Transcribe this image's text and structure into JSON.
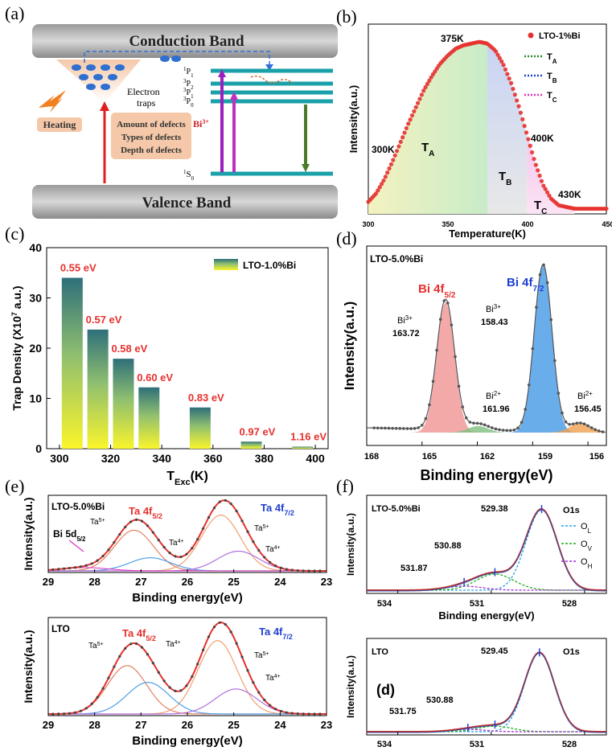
{
  "panels": {
    "a": {
      "label": "(a)",
      "conduction_band": "Conduction Band",
      "valence_band": "Valence Band",
      "electron_traps": [
        "Electron",
        "traps"
      ],
      "heating": "Heating",
      "defects": [
        "Amount of defects",
        "Types of defects",
        "Depth of defects"
      ],
      "bi_label": "Bi",
      "bi_sup": "3+",
      "levels": [
        {
          "sup": "1",
          "main": "P",
          "sub": "1"
        },
        {
          "sup": "3",
          "main": "P",
          "sub": "2"
        },
        {
          "sup": "3",
          "main": "P",
          "sub": "1"
        },
        {
          "sup": "3",
          "main": "P",
          "sub": "0"
        }
      ],
      "ground": {
        "sup": "1",
        "main": "S",
        "sub": "0"
      }
    },
    "b": {
      "label": "(b)",
      "ylabel": "Intensity(a.u.)",
      "xlabel": "Temperature(K)",
      "xticks": [
        "300",
        "350",
        "400",
        "450"
      ],
      "legend": [
        {
          "name": "LTO-1%Bi",
          "color": "#e5312d",
          "style": "dot"
        },
        {
          "name": "T",
          "sub": "A",
          "color": "#2e8b2e",
          "style": "dot-line"
        },
        {
          "name": "T",
          "sub": "B",
          "color": "#2040d0",
          "style": "dot-line"
        },
        {
          "name": "T",
          "sub": "C",
          "color": "#e030c0",
          "style": "dot-line"
        }
      ],
      "annotations": [
        "300K",
        "375K",
        "400K",
        "430K"
      ],
      "regions": [
        {
          "name": "T",
          "sub": "A"
        },
        {
          "name": "T",
          "sub": "B"
        },
        {
          "name": "T",
          "sub": "C"
        }
      ]
    },
    "c": {
      "label": "(c)",
      "ylabel_pre": "Trap Density (X10",
      "ylabel_sup": "7",
      "ylabel_post": " a.u.)",
      "xlabel_main": "T",
      "xlabel_sub": "Exc",
      "xlabel_post": "(K)",
      "legend": "LTO-1.0%Bi"
    },
    "d": {
      "label": "(d)",
      "sample": "LTO-5.0%Bi",
      "ylabel": "Intensity(a.u.)",
      "xlabel": "Binding energy(eV)",
      "xticks": [
        "168",
        "165",
        "162",
        "159",
        "156"
      ],
      "peak_labels": [
        {
          "main": "Bi 4f",
          "sub": "5/2",
          "color": "#e5312d"
        },
        {
          "main": "Bi 4f",
          "sub": "7/2",
          "color": "#2040d0"
        }
      ],
      "annotations": [
        {
          "ion": "Bi",
          "sup": "3+",
          "value": "163.72"
        },
        {
          "ion": "Bi",
          "sup": "3+",
          "value": "158.43"
        },
        {
          "ion": "Bi",
          "sup": "2+",
          "value": "161.96"
        },
        {
          "ion": "Bi",
          "sup": "2+",
          "value": "156.45"
        }
      ]
    },
    "e": {
      "label": "(e)",
      "ylabel": "Intensity(a.u.)",
      "xlabel": "Binding energy(eV)",
      "xticks": [
        "29",
        "28",
        "27",
        "26",
        "25",
        "24",
        "23"
      ],
      "top": {
        "sample": "LTO-5.0%Bi",
        "bi_note_main": "Bi 5d",
        "bi_note_sub": "5/2"
      },
      "bottom": {
        "sample": "LTO"
      },
      "peak_labels": [
        {
          "main": "Ta 4f",
          "sub": "5/2",
          "color": "#e5312d"
        },
        {
          "main": "Ta 4f",
          "sub": "7/2",
          "color": "#2040d0"
        }
      ],
      "ion_labels": [
        {
          "ion": "Ta",
          "sup": "5+"
        },
        {
          "ion": "Ta",
          "sup": "4+"
        }
      ]
    },
    "f": {
      "label": "(f)",
      "ylabel": "Intensity(a.u.)",
      "xlabel": "Binding energy(eV)",
      "xticks": [
        "534",
        "531",
        "528"
      ],
      "top": {
        "sample": "LTO-5.0%Bi",
        "values": [
          "529.38",
          "530.88",
          "531.87"
        ]
      },
      "bottom": {
        "sample": "LTO",
        "values": [
          "529.45",
          "530.88",
          "531.75"
        ],
        "inset_label": "(d)"
      },
      "title": "O1s",
      "legend": [
        {
          "main": "O",
          "sub": "L",
          "color": "#2aa0e0"
        },
        {
          "main": "O",
          "sub": "V",
          "color": "#20b020"
        },
        {
          "main": "O",
          "sub": "H",
          "color": "#a030d0"
        }
      ]
    }
  },
  "chart_data": [
    {
      "panel": "b",
      "type": "scatter",
      "title": "",
      "xlabel": "Temperature(K)",
      "ylabel": "Intensity(a.u.)",
      "xlim": [
        300,
        450
      ],
      "series": [
        {
          "name": "LTO-1%Bi",
          "x": [
            300,
            305,
            310,
            315,
            320,
            325,
            330,
            335,
            340,
            345,
            350,
            355,
            360,
            365,
            370,
            375,
            380,
            385,
            390,
            395,
            400,
            405,
            410,
            415,
            420,
            425,
            430,
            435,
            440,
            445,
            450
          ],
          "y": [
            0.07,
            0.12,
            0.2,
            0.3,
            0.41,
            0.52,
            0.62,
            0.72,
            0.8,
            0.87,
            0.92,
            0.96,
            0.98,
            0.99,
            1.0,
            0.99,
            0.95,
            0.87,
            0.76,
            0.62,
            0.46,
            0.3,
            0.17,
            0.09,
            0.05,
            0.04,
            0.03,
            0.03,
            0.03,
            0.03,
            0.03
          ]
        }
      ],
      "regions_x": [
        [
          300,
          375
        ],
        [
          375,
          400
        ],
        [
          400,
          430
        ]
      ]
    },
    {
      "panel": "c",
      "type": "bar",
      "title": "",
      "xlabel": "TExc(K)",
      "ylabel": "Trap Density (X10^7 a.u.)",
      "xlim": [
        295,
        405
      ],
      "ylim": [
        0,
        40
      ],
      "xticks": [
        300,
        320,
        340,
        360,
        380,
        400
      ],
      "yticks": [
        0,
        10,
        20,
        30,
        40
      ],
      "series": [
        {
          "name": "LTO-1.0%Bi",
          "x": [
            305,
            315,
            325,
            335,
            355,
            375,
            395
          ],
          "values": [
            34,
            23.7,
            17.9,
            12.2,
            8.2,
            1.4,
            0.4
          ],
          "labels": [
            "0.55 eV",
            "0.57 eV",
            "0.58 eV",
            "0.60 eV",
            "0.83 eV",
            "0.97 eV",
            "1.16 eV"
          ]
        }
      ]
    }
  ]
}
